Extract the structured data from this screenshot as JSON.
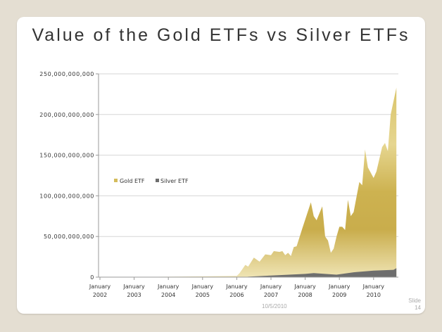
{
  "slide": {
    "title": "Value of the Gold ETFs vs Silver ETFs",
    "date": "10/5/2010",
    "slide_number": "Slide 14"
  },
  "chart_data": {
    "type": "area",
    "title": "",
    "xlabel": "",
    "ylabel": "",
    "ylim": [
      0,
      250000000000
    ],
    "y_ticks": [
      "0",
      "50,000,000,000",
      "100,000,000,000",
      "150,000,000,000",
      "200,000,000,000",
      "250,000,000,000"
    ],
    "x_ticks": [
      {
        "line1": "January",
        "line2": "2002",
        "date": "2002-01"
      },
      {
        "line1": "January",
        "line2": "2003",
        "date": "2003-01"
      },
      {
        "line1": "January",
        "line2": "2004",
        "date": "2004-01"
      },
      {
        "line1": "January",
        "line2": "2005",
        "date": "2005-01"
      },
      {
        "line1": "January",
        "line2": "2006",
        "date": "2006-01"
      },
      {
        "line1": "January",
        "line2": "2007",
        "date": "2007-01"
      },
      {
        "line1": "January",
        "line2": "2008",
        "date": "2008-01"
      },
      {
        "line1": "January",
        "line2": "2009",
        "date": "2009-01"
      },
      {
        "line1": "January",
        "line2": "2010",
        "date": "2010-01"
      }
    ],
    "grid": true,
    "legend_position": "left",
    "series": [
      {
        "name": "Gold ETF",
        "color": "#d4bc5c",
        "points": [
          [
            "2002-01",
            100000000
          ],
          [
            "2003-01",
            200000000
          ],
          [
            "2004-01",
            500000000
          ],
          [
            "2005-01",
            1000000000
          ],
          [
            "2006-01",
            1500000000
          ],
          [
            "2006-02",
            5000000000
          ],
          [
            "2006-04",
            15000000000
          ],
          [
            "2006-05",
            13000000000
          ],
          [
            "2006-07",
            24000000000
          ],
          [
            "2006-09",
            19000000000
          ],
          [
            "2006-11",
            28000000000
          ],
          [
            "2007-01",
            27000000000
          ],
          [
            "2007-02",
            32000000000
          ],
          [
            "2007-04",
            31000000000
          ],
          [
            "2007-05",
            32000000000
          ],
          [
            "2007-06",
            27000000000
          ],
          [
            "2007-07",
            30000000000
          ],
          [
            "2007-08",
            26000000000
          ],
          [
            "2007-09",
            37000000000
          ],
          [
            "2007-10",
            38000000000
          ],
          [
            "2007-12",
            60000000000
          ],
          [
            "2008-03",
            92000000000
          ],
          [
            "2008-04",
            75000000000
          ],
          [
            "2008-05",
            70000000000
          ],
          [
            "2008-07",
            87000000000
          ],
          [
            "2008-08",
            50000000000
          ],
          [
            "2008-09",
            45000000000
          ],
          [
            "2008-10",
            30000000000
          ],
          [
            "2008-11",
            35000000000
          ],
          [
            "2008-12",
            50000000000
          ],
          [
            "2009-01",
            62000000000
          ],
          [
            "2009-02",
            62000000000
          ],
          [
            "2009-03",
            58000000000
          ],
          [
            "2009-04",
            95000000000
          ],
          [
            "2009-05",
            75000000000
          ],
          [
            "2009-06",
            80000000000
          ],
          [
            "2009-08",
            117000000000
          ],
          [
            "2009-09",
            113000000000
          ],
          [
            "2009-10",
            157000000000
          ],
          [
            "2009-11",
            135000000000
          ],
          [
            "2010-01",
            122000000000
          ],
          [
            "2010-02",
            130000000000
          ],
          [
            "2010-04",
            160000000000
          ],
          [
            "2010-05",
            165000000000
          ],
          [
            "2010-06",
            155000000000
          ],
          [
            "2010-07",
            200000000000
          ],
          [
            "2010-09",
            233000000000
          ]
        ]
      },
      {
        "name": "Silver ETF",
        "color": "#6e6e6e",
        "points": [
          [
            "2006-04",
            0
          ],
          [
            "2006-05",
            500000000
          ],
          [
            "2007-01",
            2000000000
          ],
          [
            "2008-01",
            4000000000
          ],
          [
            "2008-04",
            5000000000
          ],
          [
            "2008-12",
            3000000000
          ],
          [
            "2009-06",
            6000000000
          ],
          [
            "2010-01",
            8000000000
          ],
          [
            "2010-08",
            9000000000
          ],
          [
            "2010-09",
            11000000000
          ]
        ]
      }
    ]
  }
}
